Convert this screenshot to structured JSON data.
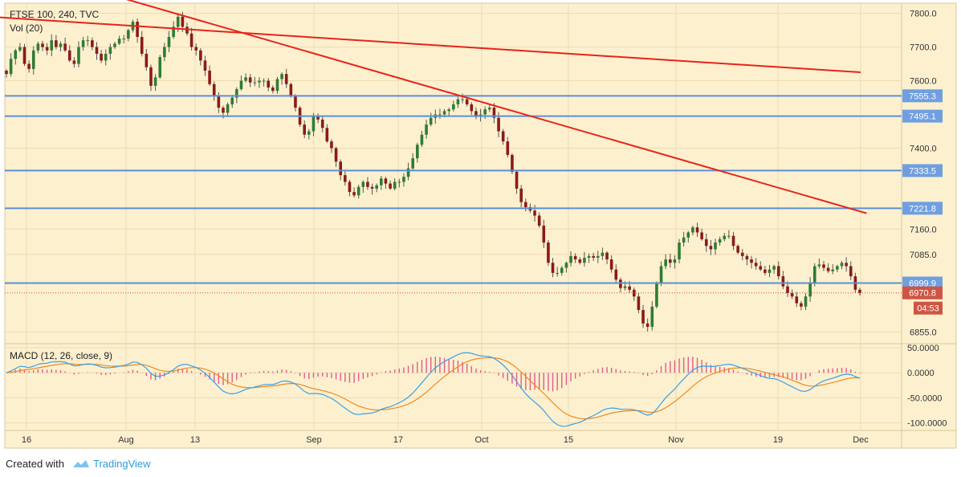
{
  "chart_data": {
    "type": "candlestick",
    "title": "FTSE 100, 240, TVC",
    "volume_label": "Vol (20)",
    "indicator_title": "MACD (12, 26, close, 9)",
    "x_tick_labels": [
      "16",
      "Aug",
      "13",
      "Sep",
      "17",
      "Oct",
      "15",
      "Nov",
      "19",
      "Dec"
    ],
    "y_tick_labels": [
      "7800.0",
      "7700.0",
      "7600.0",
      "7400.0",
      "7160.0",
      "7085.0",
      "6855.0"
    ],
    "ylim": [
      6820,
      7830
    ],
    "macd_tick_labels": [
      "50.0000",
      "0.0000",
      "-50.0000",
      "-100.0000"
    ],
    "macd_ylim": [
      -115,
      58
    ],
    "horizontal_levels": [
      {
        "value": 7555.3,
        "label": "7555.3"
      },
      {
        "value": 7495.1,
        "label": "7495.1"
      },
      {
        "value": 7333.5,
        "label": "7333.5"
      },
      {
        "value": 7221.8,
        "label": "7221.8"
      },
      {
        "value": 6999.9,
        "label": "6999.9"
      }
    ],
    "last_price": {
      "value": 6970.8,
      "label": "6970.8"
    },
    "countdown_label": "04:53",
    "trendlines": [
      {
        "name": "upper",
        "from": {
          "date": "2018-07-10",
          "value": 7790
        },
        "to": {
          "date": "2018-12-03",
          "value": 7625
        }
      },
      {
        "name": "lower",
        "from": {
          "date": "2018-07-29",
          "value": 7858
        },
        "to": {
          "date": "2018-12-04",
          "value": 7207
        }
      }
    ],
    "closes": [
      7620,
      7665,
      7690,
      7700,
      7650,
      7635,
      7690,
      7710,
      7700,
      7690,
      7720,
      7700,
      7710,
      7690,
      7660,
      7650,
      7700,
      7720,
      7720,
      7700,
      7680,
      7660,
      7680,
      7700,
      7710,
      7725,
      7725,
      7750,
      7775,
      7730,
      7680,
      7640,
      7585,
      7610,
      7670,
      7700,
      7730,
      7760,
      7790,
      7760,
      7740,
      7700,
      7690,
      7660,
      7630,
      7590,
      7555,
      7520,
      7505,
      7530,
      7550,
      7575,
      7600,
      7610,
      7595,
      7595,
      7600,
      7600,
      7580,
      7570,
      7605,
      7620,
      7590,
      7555,
      7520,
      7470,
      7440,
      7450,
      7495,
      7485,
      7460,
      7420,
      7400,
      7360,
      7320,
      7300,
      7270,
      7260,
      7285,
      7300,
      7285,
      7280,
      7290,
      7310,
      7295,
      7280,
      7300,
      7300,
      7315,
      7340,
      7370,
      7410,
      7440,
      7470,
      7490,
      7500,
      7500,
      7510,
      7515,
      7530,
      7545,
      7545,
      7530,
      7510,
      7495,
      7500,
      7515,
      7520,
      7490,
      7450,
      7420,
      7380,
      7330,
      7280,
      7240,
      7225,
      7215,
      7200,
      7170,
      7120,
      7060,
      7030,
      7030,
      7045,
      7060,
      7080,
      7070,
      7060,
      7075,
      7080,
      7075,
      7080,
      7090,
      7070,
      7040,
      7010,
      6985,
      6990,
      6980,
      6960,
      6920,
      6880,
      6870,
      6930,
      7000,
      7050,
      7070,
      7060,
      7070,
      7120,
      7135,
      7150,
      7165,
      7150,
      7130,
      7110,
      7100,
      7120,
      7130,
      7140,
      7140,
      7110,
      7090,
      7080,
      7070,
      7060,
      7050,
      7040,
      7030,
      7040,
      7050,
      7020,
      6990,
      6970,
      6960,
      6940,
      6930,
      6960,
      7000,
      7050,
      7055,
      7045,
      7035,
      7040,
      7050,
      7060,
      7050,
      7020,
      6980,
      6970
    ],
    "x_span_per_bar_px": 5.2
  },
  "footer": {
    "created_with": "Created with",
    "brand": "TradingView"
  },
  "colors": {
    "background": "#fdf0cf",
    "grid": "#ecdcb2",
    "up": "#2e7d32",
    "down": "#8b1a1a",
    "wick": "#555555",
    "level_line": "#5b8fd6",
    "level_label_bg": "#6f9fe0",
    "trendline": "#e8231b",
    "last_price_bg": "#cf5443",
    "macd_line": "#3aa0e8",
    "signal_line": "#f0891e",
    "hist_up": "#e25b8a",
    "hist_down": "#e25b8a"
  }
}
